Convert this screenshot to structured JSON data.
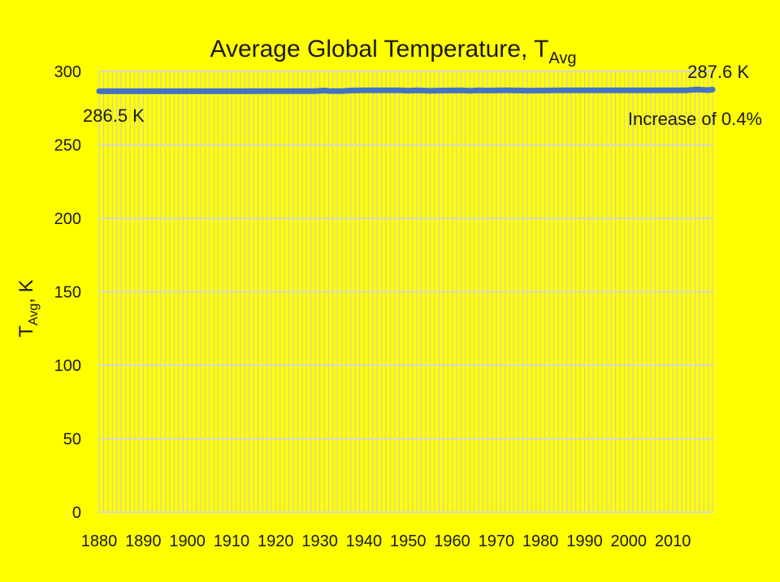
{
  "chart_data": {
    "type": "line",
    "title_main": "Average Global Temperature, T",
    "title_sub": "Avg",
    "ylabel_main": "T",
    "ylabel_sub": "Avg",
    "ylabel_unit": ", K",
    "ylim": [
      0,
      300
    ],
    "xlim": [
      1880,
      2019
    ],
    "y_ticks": [
      "0",
      "50",
      "100",
      "150",
      "200",
      "250",
      "300"
    ],
    "x_ticks": [
      "1880",
      "1890",
      "1900",
      "1910",
      "1920",
      "1930",
      "1940",
      "1950",
      "1960",
      "1970",
      "1980",
      "1990",
      "2000",
      "2010"
    ],
    "grid": true,
    "minor_vertical_grid": true,
    "line_color": "#4472c4",
    "background_color": "#ffff00",
    "annotations": {
      "start": "286.5 K",
      "end": "287.6 K",
      "increase": "Increase of 0.4%"
    },
    "series": [
      {
        "x": [
          1880,
          1890,
          1900,
          1910,
          1920,
          1929,
          1930,
          1931,
          1932,
          1935,
          1937,
          1940,
          1944,
          1948,
          1950,
          1952,
          1955,
          1958,
          1962,
          1964,
          1966,
          1968,
          1972,
          1976,
          1977,
          1980,
          1985,
          1990,
          1995,
          2000,
          2005,
          2010,
          2013,
          2015,
          2016,
          2017,
          2018,
          2019
        ],
        "y": [
          286.5,
          286.5,
          286.5,
          286.5,
          286.6,
          286.6,
          286.8,
          287.0,
          286.7,
          286.6,
          287.0,
          287.1,
          287.2,
          287.1,
          286.9,
          287.1,
          286.8,
          287.0,
          287.1,
          286.8,
          287.1,
          287.0,
          287.1,
          287.0,
          286.9,
          287.0,
          287.1,
          287.1,
          287.1,
          287.1,
          287.1,
          287.1,
          287.2,
          287.6,
          287.7,
          287.4,
          287.3,
          287.6
        ]
      }
    ]
  }
}
